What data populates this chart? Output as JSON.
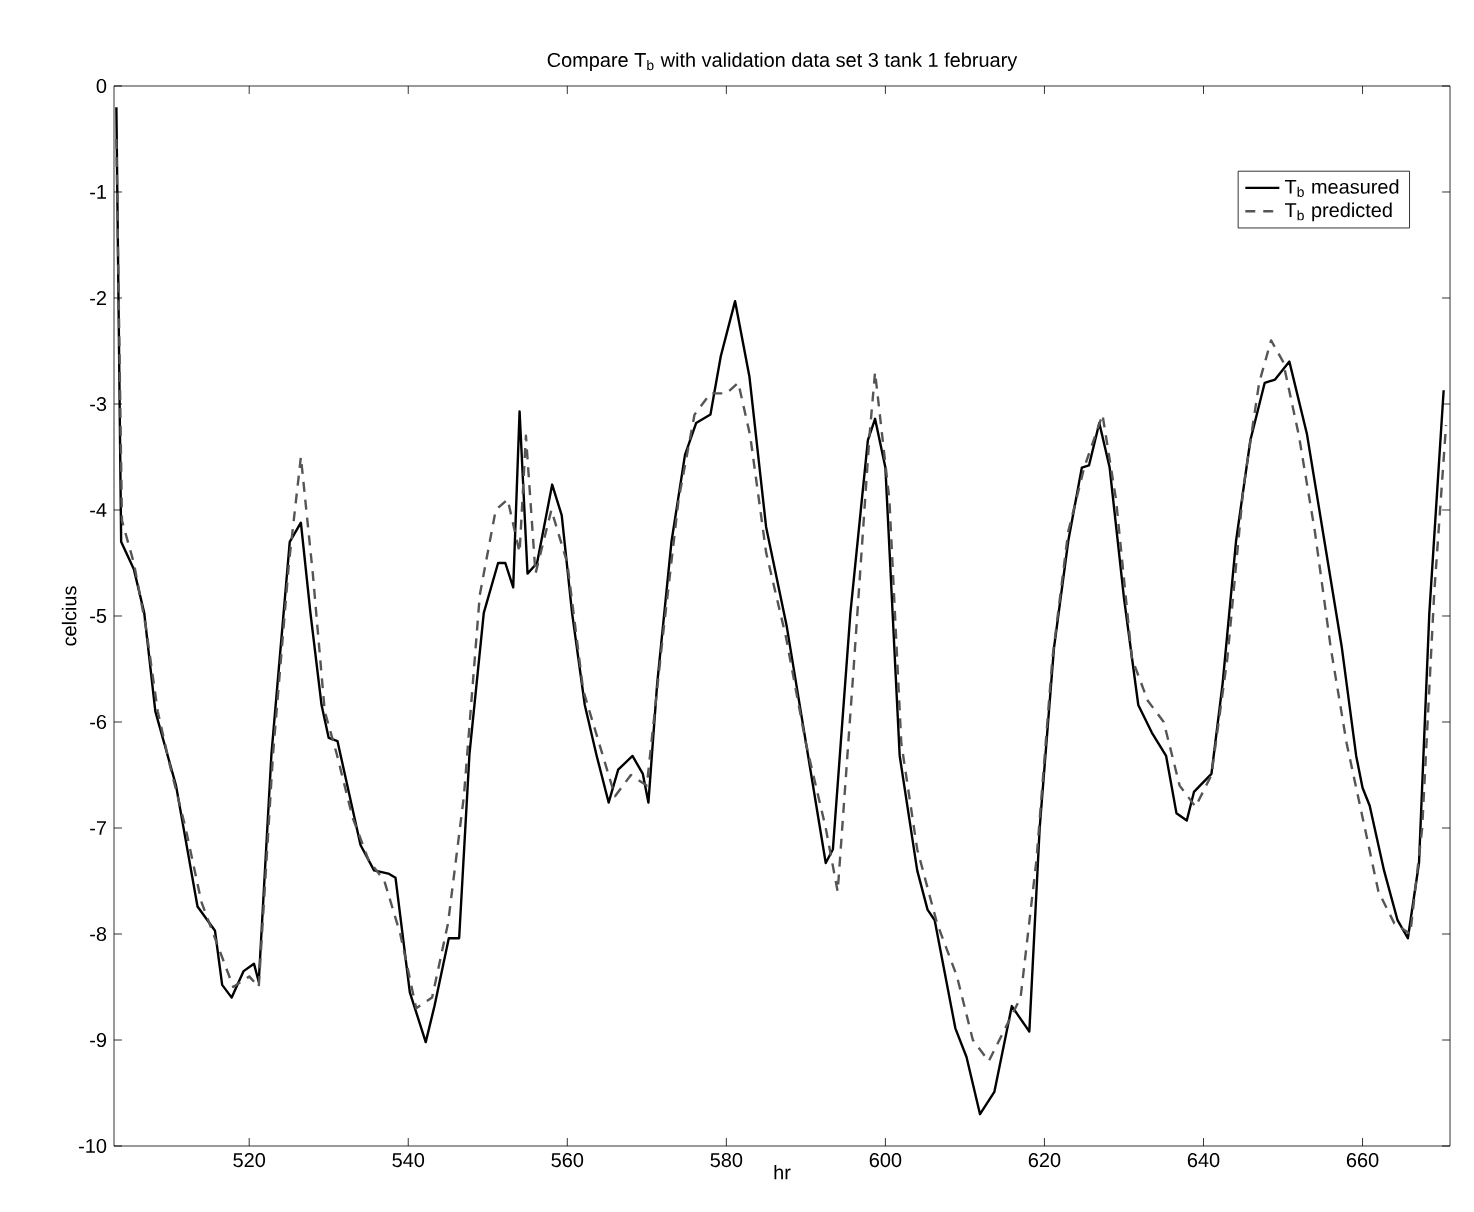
{
  "chart_data": {
    "type": "line",
    "title": "Compare T$_{b}$ with validation data set 3 tank 1 february",
    "xlabel": "hr",
    "ylabel": "celcius",
    "xlim": [
      503,
      671
    ],
    "ylim": [
      -10,
      0
    ],
    "xticks": [
      520,
      540,
      560,
      580,
      600,
      620,
      640,
      660
    ],
    "yticks": [
      0,
      -1,
      -2,
      -3,
      -4,
      -5,
      -6,
      -7,
      -8,
      -9,
      -10
    ],
    "legend": "top right",
    "grid": false,
    "series": [
      {
        "name": "T$_{b}$ measured",
        "color": "#000000",
        "line_style": "solid",
        "x": [
          503.3,
          503.9,
          505.5,
          506.8,
          508.2,
          509.5,
          510.8,
          513.5,
          515.7,
          516.6,
          517.8,
          519.3,
          520.6,
          521.2,
          522.8,
          525.1,
          526.5,
          527.7,
          529.1,
          530,
          531.1,
          534,
          535.7,
          537.5,
          538.4,
          540.2,
          542.2,
          543.3,
          545.1,
          546.4,
          547.7,
          549.5,
          551.3,
          552.2,
          553.2,
          554,
          555,
          556.2,
          558.1,
          559.3,
          560.6,
          562.2,
          563.7,
          565.2,
          566.4,
          568.2,
          569.5,
          570.2,
          571.3,
          573.1,
          574.8,
          576.2,
          578,
          579.3,
          581.1,
          582.9,
          585,
          587.6,
          589.8,
          592.5,
          593.4,
          595.6,
          597.8,
          598.7,
          600,
          601.8,
          604,
          605.3,
          606.2,
          608.8,
          610.2,
          611.9,
          613.7,
          615.9,
          616.8,
          618.1,
          619.4,
          621.2,
          623,
          624.7,
          625.6,
          626.9,
          628.2,
          630,
          631.8,
          633.5,
          635.3,
          636.6,
          637.9,
          638.8,
          641,
          642.4,
          644.1,
          645.9,
          647.7,
          649,
          650.8,
          653,
          655.2,
          657.4,
          659.2,
          660,
          660.9,
          662.7,
          664.4,
          665.7,
          667.1,
          668.4,
          670.2
        ],
        "values": [
          -0.2,
          -4.3,
          -4.56,
          -4.97,
          -5.9,
          -6.25,
          -6.6,
          -7.74,
          -7.97,
          -8.48,
          -8.6,
          -8.35,
          -8.28,
          -8.45,
          -6.3,
          -4.3,
          -4.12,
          -4.97,
          -5.84,
          -6.15,
          -6.18,
          -7.16,
          -7.4,
          -7.43,
          -7.47,
          -8.55,
          -9.02,
          -8.68,
          -8.04,
          -8.04,
          -6.3,
          -4.97,
          -4.5,
          -4.5,
          -4.73,
          -3.07,
          -4.6,
          -4.5,
          -3.76,
          -4.05,
          -4.97,
          -5.84,
          -6.32,
          -6.76,
          -6.45,
          -6.32,
          -6.49,
          -6.76,
          -5.64,
          -4.3,
          -3.48,
          -3.18,
          -3.1,
          -2.55,
          -2.03,
          -2.74,
          -4.16,
          -5.1,
          -6.1,
          -7.33,
          -7.2,
          -4.97,
          -3.34,
          -3.14,
          -3.6,
          -6.32,
          -7.4,
          -7.77,
          -7.87,
          -8.89,
          -9.16,
          -9.7,
          -9.49,
          -8.68,
          -8.78,
          -8.92,
          -7.0,
          -5.3,
          -4.29,
          -3.6,
          -3.58,
          -3.18,
          -3.6,
          -4.83,
          -5.84,
          -6.1,
          -6.32,
          -6.86,
          -6.93,
          -6.66,
          -6.49,
          -5.64,
          -4.29,
          -3.34,
          -2.8,
          -2.77,
          -2.6,
          -3.28,
          -4.29,
          -5.3,
          -6.32,
          -6.62,
          -6.79,
          -7.4,
          -7.87,
          -8.04,
          -7.33,
          -4.97,
          -2.87
        ]
      },
      {
        "name": "T$_{b}$ predicted",
        "color": "#555555",
        "line_style": "dashed",
        "x": [
          503.3,
          504,
          505.5,
          507,
          508.5,
          510,
          512,
          514,
          516,
          518,
          520,
          521.2,
          523,
          525,
          526.5,
          528,
          529.5,
          531,
          533,
          535,
          537,
          539,
          541,
          543,
          545,
          547,
          549,
          551,
          552.5,
          554,
          554.8,
          556,
          558,
          560,
          562,
          564,
          566,
          568,
          570,
          572,
          574,
          576,
          578,
          580,
          581.5,
          583,
          585,
          587.5,
          590,
          592.5,
          594,
          596,
          598,
          598.7,
          600.5,
          602,
          604,
          606.5,
          609,
          611,
          613,
          615,
          617,
          619,
          621,
          623,
          625,
          627.3,
          629,
          631,
          633,
          635,
          637,
          639,
          641,
          643,
          645,
          647,
          648.5,
          650,
          652,
          654,
          656,
          658,
          660,
          662,
          664,
          666,
          667.5,
          669,
          670.5
        ],
        "values": [
          -0.5,
          -4.1,
          -4.5,
          -5.1,
          -5.9,
          -6.4,
          -7.0,
          -7.7,
          -8.1,
          -8.5,
          -8.4,
          -8.5,
          -6.3,
          -4.5,
          -3.5,
          -4.6,
          -5.9,
          -6.3,
          -6.9,
          -7.3,
          -7.5,
          -8.0,
          -8.7,
          -8.6,
          -7.9,
          -6.7,
          -4.8,
          -4.0,
          -3.9,
          -4.4,
          -3.3,
          -4.6,
          -4.0,
          -4.5,
          -5.7,
          -6.2,
          -6.7,
          -6.5,
          -6.6,
          -5.2,
          -3.9,
          -3.1,
          -2.9,
          -2.9,
          -2.8,
          -3.3,
          -4.4,
          -5.2,
          -6.2,
          -7.0,
          -7.6,
          -5.5,
          -3.3,
          -2.7,
          -3.9,
          -6.2,
          -7.2,
          -7.9,
          -8.4,
          -9.0,
          -9.2,
          -8.9,
          -8.6,
          -7.3,
          -5.4,
          -4.2,
          -3.6,
          -3.1,
          -3.9,
          -5.4,
          -5.8,
          -6.0,
          -6.6,
          -6.8,
          -6.5,
          -5.4,
          -3.8,
          -2.8,
          -2.4,
          -2.6,
          -3.3,
          -4.2,
          -5.3,
          -6.2,
          -6.9,
          -7.6,
          -7.9,
          -8.0,
          -7.0,
          -4.8,
          -3.2
        ]
      }
    ]
  }
}
